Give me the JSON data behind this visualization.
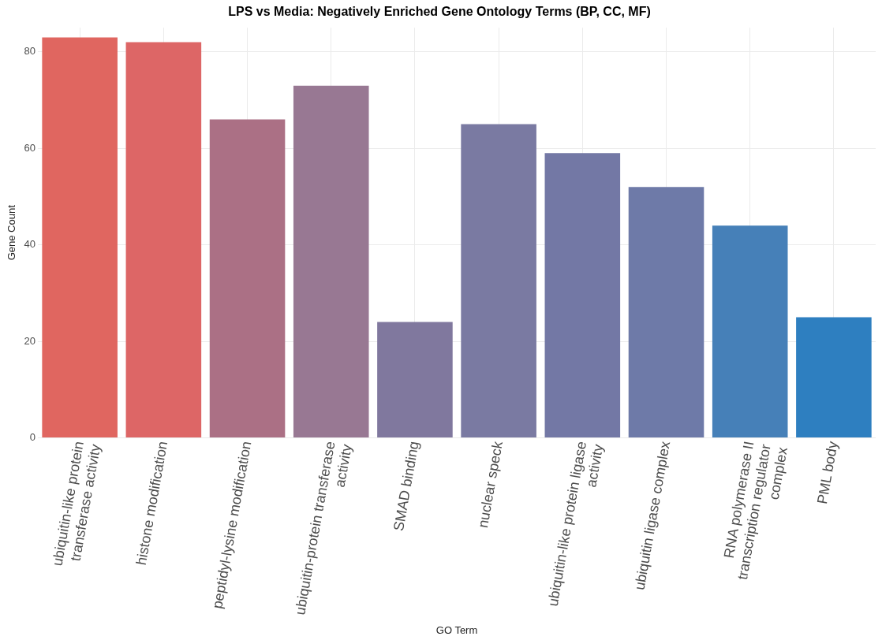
{
  "chart_data": {
    "type": "bar",
    "title": "LPS vs Media: Negatively Enriched Gene Ontology Terms (BP, CC, MF)",
    "xlabel": "GO Term",
    "ylabel": "Gene Count",
    "categories": [
      "ubiquitin-like protein transferase activity",
      "histone modification",
      "peptidyl-lysine modification",
      "ubiquitin-protein transferase activity",
      "SMAD binding",
      "nuclear speck",
      "ubiquitin-like protein ligase activity",
      "ubiquitin ligase complex",
      "RNA polymerase II transcription regulator complex",
      "PML body"
    ],
    "values": [
      83,
      82,
      66,
      73,
      24,
      65,
      59,
      52,
      44,
      25
    ],
    "colors": [
      "#e06660",
      "#dd6666",
      "#ab7085",
      "#987893",
      "#80789e",
      "#7a7aa2",
      "#7378a5",
      "#6e7aa8",
      "#4680b8",
      "#2e7fc0"
    ],
    "ylim": [
      0,
      85
    ],
    "yticks": [
      0,
      20,
      40,
      60,
      80
    ],
    "grid": true
  }
}
